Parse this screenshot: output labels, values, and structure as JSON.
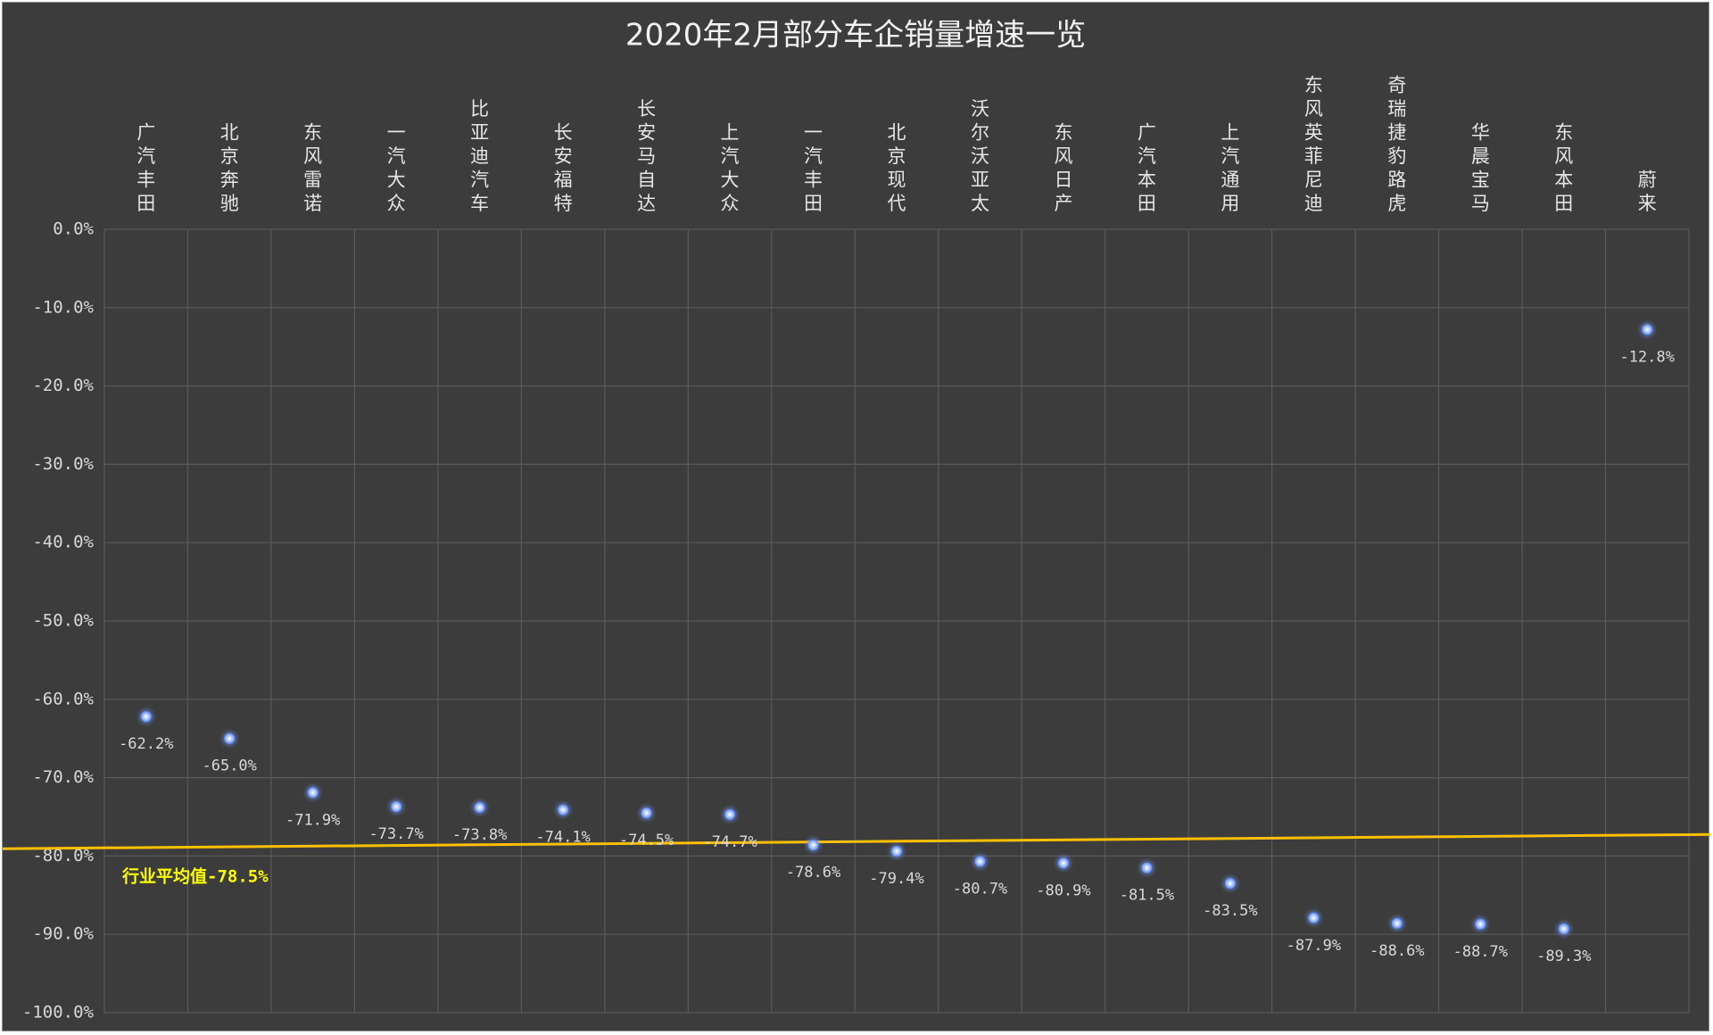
{
  "chart_data": {
    "type": "scatter",
    "title": "2020年2月部分车企销量增速一览",
    "categories": [
      "广汽丰田",
      "北京奔驰",
      "东风雷诺",
      "一汽大众",
      "比亚迪汽车",
      "长安福特",
      "长安马自达",
      "上汽大众",
      "一汽丰田",
      "北京现代",
      "沃尔沃亚太",
      "东风日产",
      "广汽本田",
      "上汽通用",
      "东风英菲尼迪",
      "奇瑞捷豹路虎",
      "华晨宝马",
      "东风本田",
      "蔚来"
    ],
    "values": [
      -62.2,
      -65.0,
      -71.9,
      -73.7,
      -73.8,
      -74.1,
      -74.5,
      -74.7,
      -78.6,
      -79.4,
      -80.7,
      -80.9,
      -81.5,
      -83.5,
      -87.9,
      -88.6,
      -88.7,
      -89.3,
      -12.8
    ],
    "data_labels": [
      "-62.2%",
      "-65.0%",
      "-71.9%",
      "-73.7%",
      "-73.8%",
      "-74.1%",
      "-74.5%",
      "-74.7%",
      "-78.6%",
      "-79.4%",
      "-80.7%",
      "-80.9%",
      "-81.5%",
      "-83.5%",
      "-87.9%",
      "-88.6%",
      "-88.7%",
      "-89.3%",
      "-12.8%"
    ],
    "ylim": [
      -100,
      0
    ],
    "yticks": [
      0,
      -10,
      -20,
      -30,
      -40,
      -50,
      -60,
      -70,
      -80,
      -90,
      -100
    ],
    "ytick_labels": [
      "0.0%",
      "-10.0%",
      "-20.0%",
      "-30.0%",
      "-40.0%",
      "-50.0%",
      "-60.0%",
      "-70.0%",
      "-80.0%",
      "-90.0%",
      "-100.0%"
    ],
    "x_axis_position": "top",
    "grid": true,
    "reference_line": {
      "label": "行业平均值-78.5%",
      "value": -78.5,
      "color": "#ffc000"
    },
    "colors": {
      "background": "#3c3c3c",
      "grid": "#5a5a5a",
      "marker": "#6f9bff",
      "label": "#ffff00"
    }
  }
}
